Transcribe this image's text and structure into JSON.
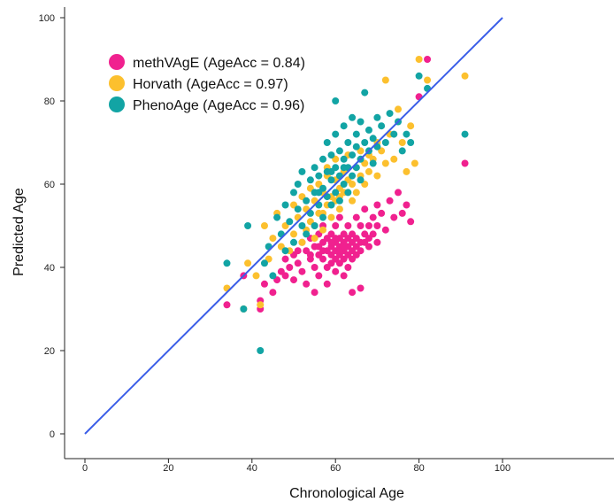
{
  "chart_data": {
    "type": "scatter",
    "xlabel": "Chronological Age",
    "ylabel": "Predicted Age",
    "xlim": [
      -4,
      100
    ],
    "ylim": [
      -6,
      102
    ],
    "x_ticks": [
      0,
      20,
      40,
      60,
      80,
      100
    ],
    "y_ticks": [
      0,
      20,
      40,
      60,
      80,
      100
    ],
    "x_tick_labels": [
      "0",
      "20",
      "40",
      "60",
      "80",
      "100"
    ],
    "y_tick_labels": [
      "0",
      "20",
      "40",
      "60",
      "80",
      "100"
    ],
    "grid": false,
    "legend_position": "top-left",
    "reference_line": {
      "from": [
        0,
        0
      ],
      "to": [
        100,
        100
      ],
      "color": "#3b5ee8"
    },
    "series": [
      {
        "name": "methVAgE (AgeAcc = 0.84)",
        "color": "#f0218f",
        "points": [
          [
            34,
            31
          ],
          [
            38,
            38
          ],
          [
            42,
            30
          ],
          [
            42,
            32
          ],
          [
            43,
            36
          ],
          [
            45,
            34
          ],
          [
            46,
            37
          ],
          [
            47,
            39
          ],
          [
            48,
            42
          ],
          [
            48,
            38
          ],
          [
            49,
            40
          ],
          [
            50,
            43
          ],
          [
            50,
            37
          ],
          [
            51,
            44
          ],
          [
            51,
            41
          ],
          [
            52,
            46
          ],
          [
            52,
            39
          ],
          [
            53,
            44
          ],
          [
            53,
            36
          ],
          [
            54,
            47
          ],
          [
            54,
            42
          ],
          [
            55,
            45
          ],
          [
            55,
            40
          ],
          [
            55,
            34
          ],
          [
            56,
            48
          ],
          [
            56,
            43
          ],
          [
            56,
            38
          ],
          [
            57,
            46
          ],
          [
            57,
            42
          ],
          [
            57,
            50
          ],
          [
            58,
            44
          ],
          [
            58,
            40
          ],
          [
            58,
            47
          ],
          [
            58,
            36
          ],
          [
            59,
            45
          ],
          [
            59,
            43
          ],
          [
            59,
            48
          ],
          [
            59,
            41
          ],
          [
            60,
            46
          ],
          [
            60,
            44
          ],
          [
            60,
            42
          ],
          [
            60,
            50
          ],
          [
            60,
            39
          ],
          [
            61,
            47
          ],
          [
            61,
            45
          ],
          [
            61,
            43
          ],
          [
            61,
            41
          ],
          [
            61,
            52
          ],
          [
            62,
            46
          ],
          [
            62,
            44
          ],
          [
            62,
            42
          ],
          [
            62,
            48
          ],
          [
            62,
            38
          ],
          [
            63,
            47
          ],
          [
            63,
            45
          ],
          [
            63,
            43
          ],
          [
            63,
            50
          ],
          [
            63,
            40
          ],
          [
            64,
            46
          ],
          [
            64,
            44
          ],
          [
            64,
            48
          ],
          [
            64,
            42
          ],
          [
            64,
            34
          ],
          [
            65,
            47
          ],
          [
            65,
            45
          ],
          [
            65,
            43
          ],
          [
            65,
            52
          ],
          [
            66,
            46
          ],
          [
            66,
            44
          ],
          [
            66,
            50
          ],
          [
            66,
            35
          ],
          [
            67,
            48
          ],
          [
            67,
            46
          ],
          [
            67,
            54
          ],
          [
            68,
            47
          ],
          [
            68,
            50
          ],
          [
            68,
            45
          ],
          [
            69,
            52
          ],
          [
            69,
            48
          ],
          [
            70,
            55
          ],
          [
            70,
            50
          ],
          [
            70,
            46
          ],
          [
            71,
            53
          ],
          [
            72,
            49
          ],
          [
            73,
            56
          ],
          [
            74,
            52
          ],
          [
            75,
            58
          ],
          [
            76,
            53
          ],
          [
            77,
            55
          ],
          [
            78,
            51
          ],
          [
            80,
            81
          ],
          [
            82,
            90
          ],
          [
            91,
            65
          ],
          [
            54,
            43
          ],
          [
            56,
            45
          ],
          [
            57,
            44
          ],
          [
            59,
            46
          ],
          [
            60,
            47
          ],
          [
            61,
            44
          ],
          [
            62,
            45
          ]
        ]
      },
      {
        "name": "Horvath (AgeAcc = 0.97)",
        "color": "#fcc02e",
        "points": [
          [
            34,
            35
          ],
          [
            38,
            30
          ],
          [
            39,
            41
          ],
          [
            41,
            38
          ],
          [
            42,
            31
          ],
          [
            43,
            50
          ],
          [
            44,
            42
          ],
          [
            45,
            47
          ],
          [
            46,
            53
          ],
          [
            47,
            45
          ],
          [
            48,
            50
          ],
          [
            49,
            44
          ],
          [
            50,
            55
          ],
          [
            50,
            48
          ],
          [
            51,
            52
          ],
          [
            52,
            57
          ],
          [
            52,
            46
          ],
          [
            53,
            54
          ],
          [
            53,
            49
          ],
          [
            54,
            59
          ],
          [
            54,
            51
          ],
          [
            55,
            56
          ],
          [
            55,
            47
          ],
          [
            56,
            60
          ],
          [
            56,
            53
          ],
          [
            57,
            58
          ],
          [
            57,
            49
          ],
          [
            58,
            62
          ],
          [
            58,
            55
          ],
          [
            58,
            64
          ],
          [
            59,
            57
          ],
          [
            59,
            52
          ],
          [
            60,
            61
          ],
          [
            60,
            56
          ],
          [
            60,
            66
          ],
          [
            61,
            59
          ],
          [
            61,
            54
          ],
          [
            62,
            63
          ],
          [
            62,
            58
          ],
          [
            63,
            61
          ],
          [
            63,
            67
          ],
          [
            64,
            60
          ],
          [
            64,
            56
          ],
          [
            65,
            64
          ],
          [
            65,
            58
          ],
          [
            66,
            62
          ],
          [
            66,
            68
          ],
          [
            67,
            65
          ],
          [
            67,
            60
          ],
          [
            68,
            67
          ],
          [
            68,
            63
          ],
          [
            69,
            66
          ],
          [
            70,
            70
          ],
          [
            70,
            62
          ],
          [
            71,
            68
          ],
          [
            72,
            85
          ],
          [
            72,
            65
          ],
          [
            73,
            72
          ],
          [
            74,
            66
          ],
          [
            75,
            78
          ],
          [
            76,
            70
          ],
          [
            77,
            63
          ],
          [
            78,
            74
          ],
          [
            79,
            65
          ],
          [
            80,
            90
          ],
          [
            82,
            85
          ],
          [
            91,
            86
          ],
          [
            55,
            50
          ],
          [
            57,
            53
          ],
          [
            61,
            57
          ]
        ]
      },
      {
        "name": "PhenoAge (AgeAcc = 0.96)",
        "color": "#12a4a4",
        "points": [
          [
            34,
            41
          ],
          [
            38,
            30
          ],
          [
            39,
            50
          ],
          [
            42,
            20
          ],
          [
            43,
            41
          ],
          [
            44,
            45
          ],
          [
            45,
            38
          ],
          [
            46,
            52
          ],
          [
            47,
            48
          ],
          [
            48,
            55
          ],
          [
            48,
            44
          ],
          [
            49,
            51
          ],
          [
            50,
            58
          ],
          [
            50,
            46
          ],
          [
            51,
            54
          ],
          [
            51,
            60
          ],
          [
            52,
            50
          ],
          [
            52,
            63
          ],
          [
            53,
            56
          ],
          [
            53,
            48
          ],
          [
            54,
            61
          ],
          [
            54,
            53
          ],
          [
            55,
            58
          ],
          [
            55,
            64
          ],
          [
            55,
            50
          ],
          [
            56,
            62
          ],
          [
            56,
            55
          ],
          [
            57,
            66
          ],
          [
            57,
            59
          ],
          [
            57,
            52
          ],
          [
            58,
            63
          ],
          [
            58,
            57
          ],
          [
            58,
            70
          ],
          [
            59,
            61
          ],
          [
            59,
            55
          ],
          [
            59,
            67
          ],
          [
            60,
            64
          ],
          [
            60,
            58
          ],
          [
            60,
            72
          ],
          [
            60,
            80
          ],
          [
            61,
            62
          ],
          [
            61,
            68
          ],
          [
            61,
            56
          ],
          [
            62,
            66
          ],
          [
            62,
            60
          ],
          [
            62,
            74
          ],
          [
            63,
            64
          ],
          [
            63,
            70
          ],
          [
            63,
            58
          ],
          [
            64,
            67
          ],
          [
            64,
            62
          ],
          [
            64,
            76
          ],
          [
            65,
            69
          ],
          [
            65,
            64
          ],
          [
            65,
            72
          ],
          [
            66,
            66
          ],
          [
            66,
            75
          ],
          [
            66,
            61
          ],
          [
            67,
            70
          ],
          [
            67,
            82
          ],
          [
            68,
            68
          ],
          [
            68,
            73
          ],
          [
            69,
            71
          ],
          [
            69,
            65
          ],
          [
            70,
            76
          ],
          [
            70,
            69
          ],
          [
            71,
            74
          ],
          [
            72,
            70
          ],
          [
            73,
            77
          ],
          [
            74,
            72
          ],
          [
            75,
            75
          ],
          [
            76,
            68
          ],
          [
            77,
            72
          ],
          [
            78,
            70
          ],
          [
            80,
            86
          ],
          [
            82,
            83
          ],
          [
            91,
            72
          ],
          [
            56,
            58
          ],
          [
            59,
            63
          ],
          [
            62,
            64
          ]
        ]
      }
    ]
  }
}
